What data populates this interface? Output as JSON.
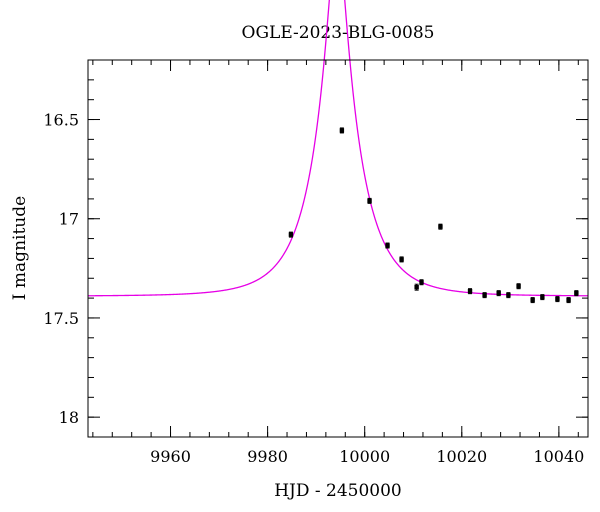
{
  "chart_data": {
    "type": "scatter",
    "title": "OGLE-2023-BLG-0085",
    "xlabel": "HJD - 2450000",
    "ylabel": "I magnitude",
    "xlim": [
      9943,
      10046
    ],
    "ylim": [
      16.2,
      18.1
    ],
    "y_inverted": true,
    "grid": false,
    "x_ticks": [
      9960,
      9980,
      10000,
      10020,
      10040
    ],
    "x_tick_labels": [
      "9960",
      "9980",
      "10000",
      "10020",
      "10040"
    ],
    "y_ticks": [
      16.5,
      17,
      17.5,
      18
    ],
    "y_tick_labels": [
      "16.5",
      "17",
      "17.5",
      "18"
    ],
    "x_minor_step": 4,
    "y_minor_step": 0.1,
    "colors": {
      "model": "#e600e6",
      "points": "#000000",
      "axes": "#000000"
    },
    "model_curve": {
      "t0": 9994.3,
      "u0": 0.19,
      "tE": 9.0,
      "baseline_mag": 17.39
    },
    "points": [
      {
        "x": 9984.8,
        "y": 17.08,
        "err": 0.01
      },
      {
        "x": 9995.3,
        "y": 16.555,
        "err": 0.008
      },
      {
        "x": 10001.0,
        "y": 16.91,
        "err": 0.01
      },
      {
        "x": 10004.7,
        "y": 17.135,
        "err": 0.01
      },
      {
        "x": 10007.6,
        "y": 17.205,
        "err": 0.01
      },
      {
        "x": 10010.7,
        "y": 17.345,
        "err": 0.015
      },
      {
        "x": 10011.7,
        "y": 17.32,
        "err": 0.01
      },
      {
        "x": 10015.6,
        "y": 17.04,
        "err": 0.01
      },
      {
        "x": 10021.7,
        "y": 17.365,
        "err": 0.01
      },
      {
        "x": 10024.7,
        "y": 17.385,
        "err": 0.01
      },
      {
        "x": 10027.6,
        "y": 17.375,
        "err": 0.01
      },
      {
        "x": 10029.6,
        "y": 17.385,
        "err": 0.01
      },
      {
        "x": 10031.7,
        "y": 17.34,
        "err": 0.01
      },
      {
        "x": 10034.6,
        "y": 17.41,
        "err": 0.012
      },
      {
        "x": 10036.6,
        "y": 17.395,
        "err": 0.01
      },
      {
        "x": 10039.7,
        "y": 17.405,
        "err": 0.01
      },
      {
        "x": 10042.0,
        "y": 17.41,
        "err": 0.012
      },
      {
        "x": 10043.6,
        "y": 17.375,
        "err": 0.012
      }
    ]
  }
}
